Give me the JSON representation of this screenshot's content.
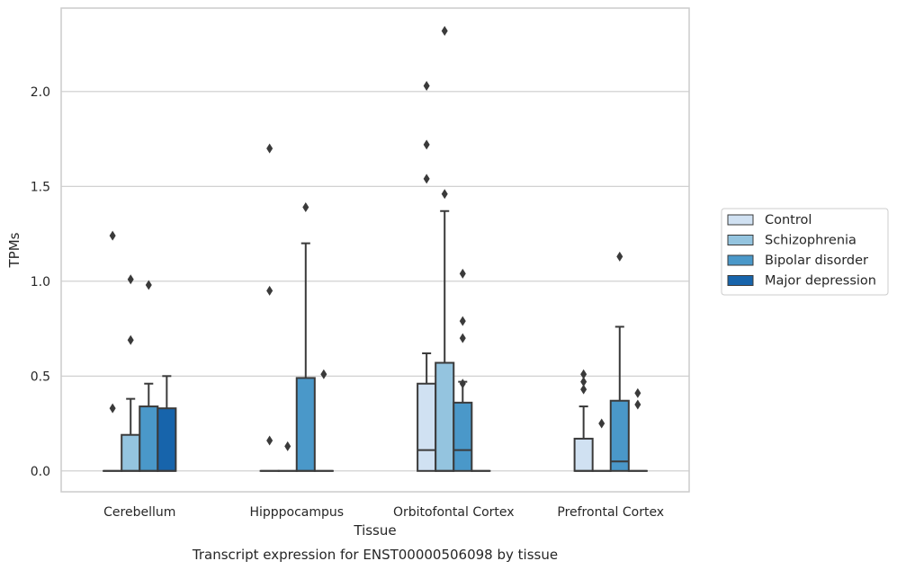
{
  "chart_data": {
    "type": "box",
    "xlabel": "Tissue",
    "ylabel": "TPMs",
    "caption": "Transcript expression for ENST00000506098 by tissue",
    "ylim": [
      -0.11,
      2.44
    ],
    "yticks": [
      0.0,
      0.5,
      1.0,
      1.5,
      2.0
    ],
    "ytick_labels": [
      "0.0",
      "0.5",
      "1.0",
      "1.5",
      "2.0"
    ],
    "grid": "horizontal",
    "legend_position": "right",
    "categories": [
      "Cerebellum",
      "Hipppocampus",
      "Orbitofontal Cortex",
      "Prefrontal Cortex"
    ],
    "series": [
      {
        "name": "Control",
        "color": "#d0e1f2"
      },
      {
        "name": "Schizophrenia",
        "color": "#94c4df"
      },
      {
        "name": "Bipolar disorder",
        "color": "#4a98c9"
      },
      {
        "name": "Major depression",
        "color": "#1764ab"
      }
    ],
    "boxes": [
      [
        {
          "q1": 0,
          "median": 0,
          "q3": 0,
          "whisker_low": 0,
          "whisker_high": 0,
          "outliers": [
            0.33,
            1.24
          ]
        },
        {
          "q1": 0,
          "median": 0,
          "q3": 0.19,
          "whisker_low": 0,
          "whisker_high": 0.38,
          "outliers": [
            0.69,
            1.01
          ]
        },
        {
          "q1": 0,
          "median": 0,
          "q3": 0.34,
          "whisker_low": 0,
          "whisker_high": 0.46,
          "outliers": [
            0.98
          ]
        },
        {
          "q1": 0,
          "median": 0,
          "q3": 0.33,
          "whisker_low": 0,
          "whisker_high": 0.5,
          "outliers": []
        }
      ],
      [
        {
          "q1": 0,
          "median": 0,
          "q3": 0,
          "whisker_low": 0,
          "whisker_high": 0,
          "outliers": [
            0.16,
            0.95,
            1.7
          ]
        },
        {
          "q1": 0,
          "median": 0,
          "q3": 0,
          "whisker_low": 0,
          "whisker_high": 0,
          "outliers": [
            0.13
          ]
        },
        {
          "q1": 0,
          "median": 0,
          "q3": 0.49,
          "whisker_low": 0,
          "whisker_high": 1.2,
          "outliers": [
            1.39
          ]
        },
        {
          "q1": 0,
          "median": 0,
          "q3": 0,
          "whisker_low": 0,
          "whisker_high": 0,
          "outliers": [
            0.51
          ]
        }
      ],
      [
        {
          "q1": 0,
          "median": 0.11,
          "q3": 0.46,
          "whisker_low": 0,
          "whisker_high": 0.62,
          "outliers": [
            1.54,
            1.72,
            2.03
          ]
        },
        {
          "q1": 0,
          "median": 0,
          "q3": 0.57,
          "whisker_low": 0,
          "whisker_high": 1.37,
          "outliers": [
            1.46,
            2.32
          ]
        },
        {
          "q1": 0,
          "median": 0.11,
          "q3": 0.36,
          "whisker_low": 0,
          "whisker_high": 0.47,
          "outliers": [
            0.46,
            0.7,
            0.79,
            1.04
          ]
        },
        {
          "q1": 0,
          "median": 0,
          "q3": 0,
          "whisker_low": 0,
          "whisker_high": 0,
          "outliers": []
        }
      ],
      [
        {
          "q1": 0,
          "median": 0,
          "q3": 0.17,
          "whisker_low": 0,
          "whisker_high": 0.34,
          "outliers": [
            0.43,
            0.47,
            0.51
          ]
        },
        {
          "q1": 0,
          "median": 0,
          "q3": 0,
          "whisker_low": 0,
          "whisker_high": 0,
          "outliers": [
            0.25
          ]
        },
        {
          "q1": 0,
          "median": 0.05,
          "q3": 0.37,
          "whisker_low": 0,
          "whisker_high": 0.76,
          "outliers": [
            1.13
          ]
        },
        {
          "q1": 0,
          "median": 0,
          "q3": 0,
          "whisker_low": 0,
          "whisker_high": 0,
          "outliers": [
            0.35,
            0.41
          ]
        }
      ]
    ]
  }
}
